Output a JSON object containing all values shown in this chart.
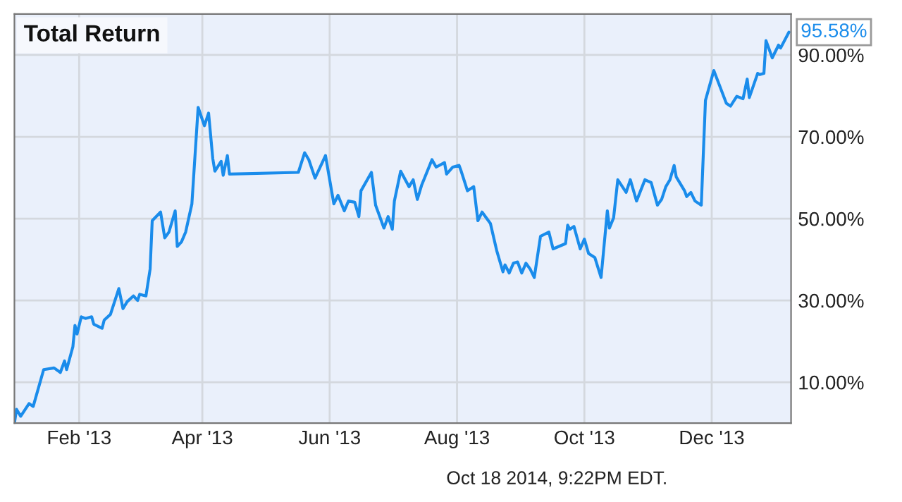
{
  "chart_data": {
    "type": "line",
    "title": "Total Return",
    "annotations": [
      {
        "text": "95.58%",
        "x": "2014-01-07",
        "y": 95.58
      },
      "Oct 18 2014, 9:22PM EDT."
    ],
    "x": [
      "2013-01-01",
      "2013-01-02",
      "2013-01-04",
      "2013-01-08",
      "2013-01-10",
      "2013-01-15",
      "2013-01-20",
      "2013-01-23",
      "2013-01-25",
      "2013-01-26",
      "2013-01-29",
      "2013-01-30",
      "2013-01-31",
      "2013-02-02",
      "2013-02-04",
      "2013-02-07",
      "2013-02-08",
      "2013-02-12",
      "2013-02-13",
      "2013-02-16",
      "2013-02-20",
      "2013-02-22",
      "2013-02-24",
      "2013-02-27",
      "2013-03-01",
      "2013-03-02",
      "2013-03-05",
      "2013-03-07",
      "2013-03-08",
      "2013-03-12",
      "2013-03-14",
      "2013-03-16",
      "2013-03-19",
      "2013-03-20",
      "2013-03-22",
      "2013-03-24",
      "2013-03-27",
      "2013-03-30",
      "2013-04-02",
      "2013-04-04",
      "2013-04-06",
      "2013-04-07",
      "2013-04-10",
      "2013-04-11",
      "2013-04-13",
      "2013-04-14",
      "2013-05-17",
      "2013-05-20",
      "2013-05-22",
      "2013-05-25",
      "2013-05-30",
      "2013-06-03",
      "2013-06-05",
      "2013-06-08",
      "2013-06-10",
      "2013-06-13",
      "2013-06-15",
      "2013-06-16",
      "2013-06-21",
      "2013-06-23",
      "2013-06-27",
      "2013-06-29",
      "2013-07-01",
      "2013-07-02",
      "2013-07-05",
      "2013-07-09",
      "2013-07-11",
      "2013-07-13",
      "2013-07-15",
      "2013-07-20",
      "2013-07-22",
      "2013-07-26",
      "2013-07-27",
      "2013-07-30",
      "2013-08-02",
      "2013-08-03",
      "2013-08-06",
      "2013-08-09",
      "2013-08-11",
      "2013-08-13",
      "2013-08-17",
      "2013-08-20",
      "2013-08-23",
      "2013-08-24",
      "2013-08-26",
      "2013-08-28",
      "2013-08-30",
      "2013-09-01",
      "2013-09-03",
      "2013-09-05",
      "2013-09-07",
      "2013-09-10",
      "2013-09-14",
      "2013-09-16",
      "2013-09-22",
      "2013-09-23",
      "2013-09-24",
      "2013-09-26",
      "2013-09-29",
      "2013-10-01",
      "2013-10-03",
      "2013-10-06",
      "2013-10-09",
      "2013-10-12",
      "2013-10-13",
      "2013-10-15",
      "2013-10-17",
      "2013-10-21",
      "2013-10-23",
      "2013-10-26",
      "2013-10-30",
      "2013-11-02",
      "2013-11-05",
      "2013-11-07",
      "2013-11-09",
      "2013-11-11",
      "2013-11-13",
      "2013-11-14",
      "2013-11-18",
      "2013-11-19",
      "2013-11-21",
      "2013-11-23",
      "2013-11-26",
      "2013-11-28",
      "2013-12-02",
      "2013-12-08",
      "2013-12-10",
      "2013-12-13",
      "2013-12-16",
      "2013-12-18",
      "2013-12-19",
      "2013-12-23",
      "2013-12-24",
      "2013-12-26",
      "2013-12-27",
      "2013-12-30",
      "2014-01-02",
      "2014-01-03",
      "2014-01-07"
    ],
    "series": [
      {
        "color": "#1a8ceb",
        "values": [
          0,
          3.4,
          1.7,
          4.8,
          4.1,
          13.1,
          13.5,
          12.4,
          15.2,
          13.1,
          18.7,
          23.9,
          21.8,
          26,
          25.6,
          26,
          24.2,
          23.2,
          25.2,
          26.6,
          32.9,
          28,
          29.7,
          31.1,
          30,
          31.5,
          31.1,
          37.7,
          49.5,
          51.6,
          45.3,
          46.7,
          51.9,
          43.2,
          44.3,
          46.7,
          53.6,
          77.2,
          72.7,
          75.8,
          64.7,
          61.6,
          64,
          60.6,
          65.4,
          60.9,
          61.3,
          66.1,
          64.4,
          59.9,
          65.4,
          53.6,
          55.7,
          51.9,
          54.3,
          54,
          50.5,
          56.8,
          61.3,
          53.3,
          47.7,
          50.5,
          47.4,
          54.3,
          61.6,
          57.8,
          59.5,
          54.7,
          58.1,
          64.4,
          62.6,
          63.7,
          60.9,
          62.6,
          63,
          61.6,
          56.8,
          57.8,
          49.5,
          51.6,
          48.8,
          42.2,
          37,
          38.7,
          36.7,
          39.1,
          39.4,
          36.7,
          39.1,
          37.7,
          35.6,
          45.7,
          46.7,
          42.6,
          43.9,
          48.4,
          47.4,
          48.1,
          42.6,
          45,
          41.5,
          40.5,
          35.6,
          51.9,
          47.7,
          50.2,
          59.5,
          56.4,
          59.5,
          54.3,
          59.5,
          58.8,
          53.3,
          54.7,
          57.8,
          59.5,
          63,
          60.2,
          56.8,
          55.4,
          56.4,
          54.3,
          53.3,
          78.9,
          86.2,
          78.2,
          77.5,
          79.9,
          79.3,
          84.1,
          79.6,
          85.5,
          85.2,
          85.5,
          93.5,
          89.3,
          92.4,
          91.7,
          95.58
        ]
      }
    ],
    "xlim": [
      "2013-01-01",
      "2014-01-08"
    ],
    "xticks": [
      {
        "value": "2013-02-01",
        "label": "Feb '13"
      },
      {
        "value": "2013-04-01",
        "label": "Apr '13"
      },
      {
        "value": "2013-06-01",
        "label": "Jun '13"
      },
      {
        "value": "2013-08-01",
        "label": "Aug '13"
      },
      {
        "value": "2013-10-01",
        "label": "Oct '13"
      },
      {
        "value": "2013-12-01",
        "label": "Dec '13"
      }
    ],
    "ylim": [
      0,
      100
    ],
    "yticks": [
      {
        "value": 10,
        "label": "10.00%"
      },
      {
        "value": 30,
        "label": "30.00%"
      },
      {
        "value": 50,
        "label": "50.00%"
      },
      {
        "value": 70,
        "label": "70.00%"
      },
      {
        "value": 90,
        "label": "90.00%"
      }
    ],
    "grid": true,
    "legend": false,
    "marker": "none",
    "line_style": "solid"
  }
}
